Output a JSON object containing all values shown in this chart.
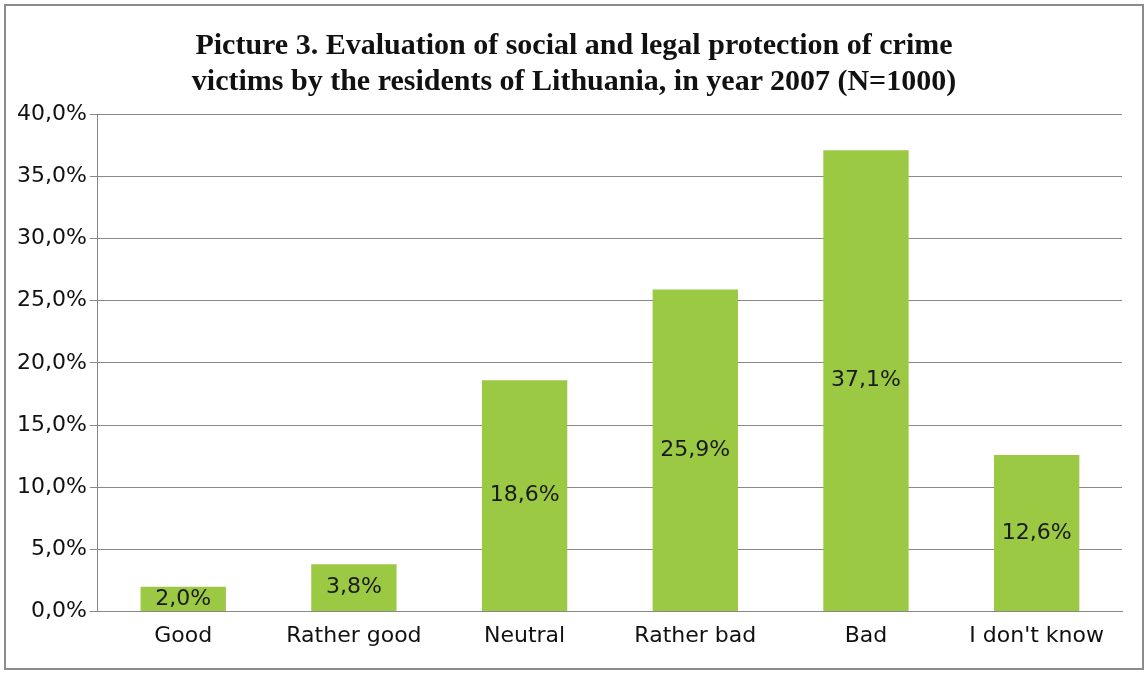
{
  "chart_data": {
    "type": "bar",
    "title": "Picture 3. Evaluation of social and legal protection of crime victims by the residents of Lithuania, in year 2007 (N=1000)",
    "categories": [
      "Good",
      "Rather good",
      "Neutral",
      "Rather bad",
      "Bad",
      "I don't know"
    ],
    "values": [
      2.0,
      3.8,
      18.6,
      25.9,
      37.1,
      12.6
    ],
    "value_labels": [
      "2,0%",
      "3,8%",
      "18,6%",
      "25,9%",
      "37,1%",
      "12,6%"
    ],
    "color": "#9bc944",
    "ylim": [
      0,
      40
    ],
    "yticks": [
      {
        "value": 0,
        "label": "0,0%"
      },
      {
        "value": 5,
        "label": "5,0%"
      },
      {
        "value": 10,
        "label": "10,0%"
      },
      {
        "value": 15,
        "label": "15,0%"
      },
      {
        "value": 20,
        "label": "20,0%"
      },
      {
        "value": 25,
        "label": "25,0%"
      },
      {
        "value": 30,
        "label": "30,0%"
      },
      {
        "value": 35,
        "label": "35,0%"
      },
      {
        "value": 40,
        "label": "40,0%"
      }
    ],
    "grid": "y",
    "legend": false
  }
}
